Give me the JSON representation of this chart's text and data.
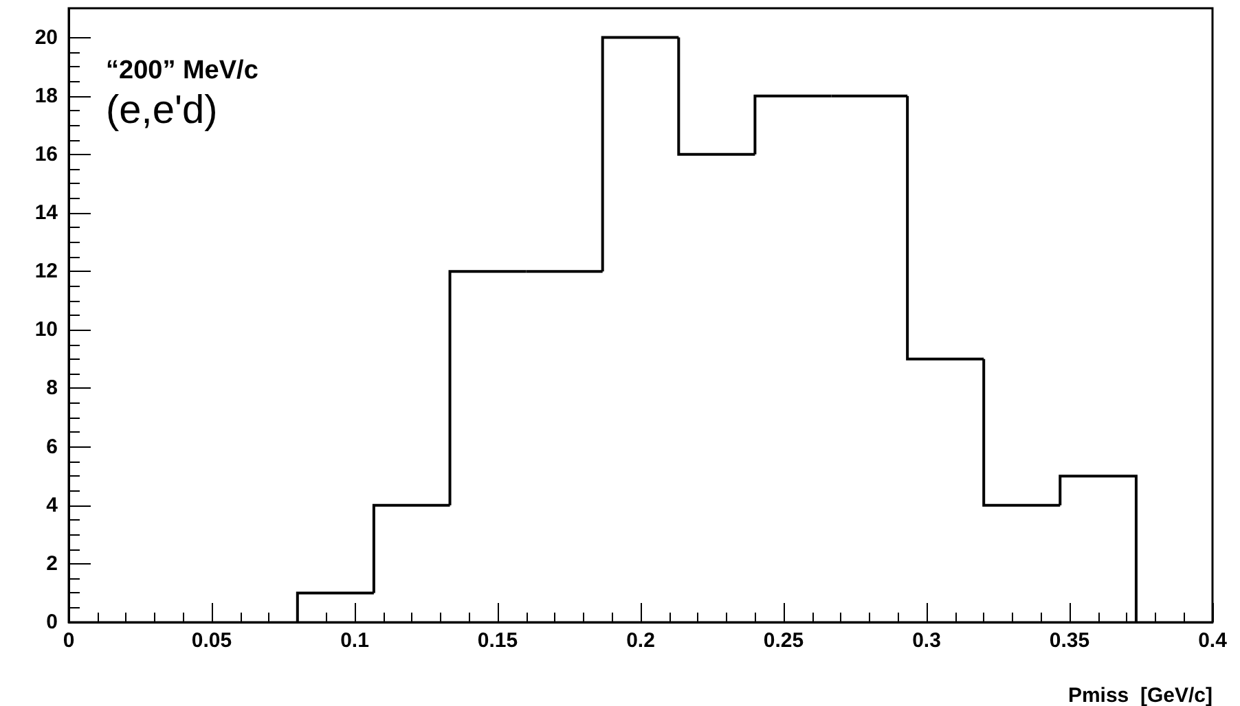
{
  "chart_data": {
    "type": "histogram",
    "xlabel": "Pmiss  [GeV/c]",
    "bins": [
      0.08,
      0.1067,
      0.1333,
      0.16,
      0.1867,
      0.2133,
      0.24,
      0.2667,
      0.2933,
      0.32,
      0.3467,
      0.3733
    ],
    "values": [
      1,
      4,
      12,
      12,
      20,
      16,
      18,
      18,
      9,
      4,
      5
    ],
    "color": "#000000",
    "xlim": [
      0,
      0.4
    ],
    "xticks": [
      0,
      0.05,
      0.1,
      0.15,
      0.2,
      0.25,
      0.3,
      0.35,
      0.4
    ],
    "ylim": [
      0,
      21
    ],
    "yticks": [
      0,
      2,
      4,
      6,
      8,
      10,
      12,
      14,
      16,
      18,
      20
    ],
    "annotations": [
      "“200” MeV/c",
      "(e,e'd)"
    ],
    "grid": false
  }
}
